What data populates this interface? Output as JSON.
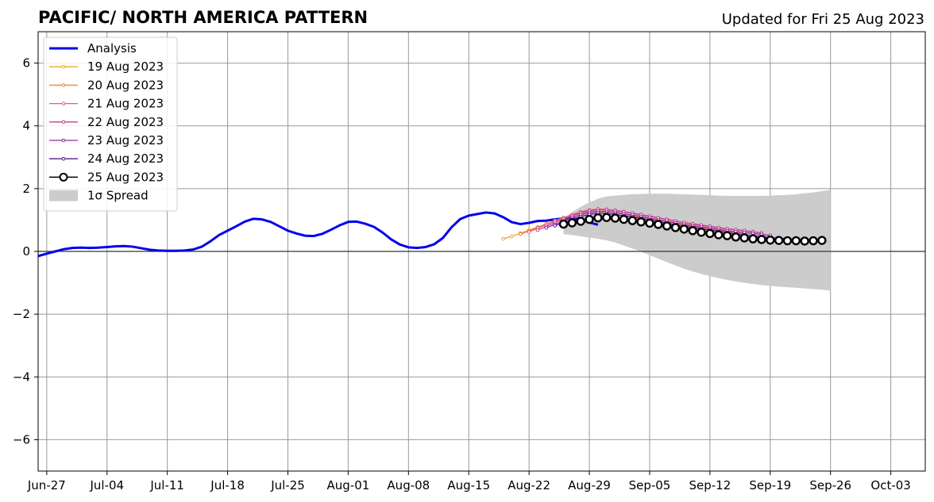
{
  "chart_data": {
    "type": "line",
    "title": "PACIFIC/ NORTH AMERICA PATTERN",
    "subtitle": "Updated for Fri 25 Aug 2023",
    "xlabel": "",
    "ylabel": "",
    "ylim": [
      -7,
      7
    ],
    "xlim": [
      "2023-06-26",
      "2023-10-07"
    ],
    "yticks": [
      -6,
      -4,
      -2,
      0,
      2,
      4,
      6
    ],
    "ytick_labels": [
      "−6",
      "−4",
      "−2",
      "0",
      "2",
      "4",
      "6"
    ],
    "xticks": [
      "2023-06-27",
      "2023-07-04",
      "2023-07-11",
      "2023-07-18",
      "2023-07-25",
      "2023-08-01",
      "2023-08-08",
      "2023-08-15",
      "2023-08-22",
      "2023-08-29",
      "2023-09-05",
      "2023-09-12",
      "2023-09-19",
      "2023-09-26",
      "2023-10-03"
    ],
    "xtick_labels": [
      "Jun-27",
      "Jul-04",
      "Jul-11",
      "Jul-18",
      "Jul-25",
      "Aug-01",
      "Aug-08",
      "Aug-15",
      "Aug-22",
      "Aug-29",
      "Sep-05",
      "Sep-12",
      "Sep-19",
      "Sep-26",
      "Oct-03"
    ],
    "grid": true,
    "legend_position": "top-left",
    "zero_line": true,
    "analysis": {
      "name": "Analysis",
      "color": "#0000ee",
      "start": "2023-06-26",
      "values": [
        -0.15,
        -0.07,
        0.0,
        0.07,
        0.11,
        0.12,
        0.11,
        0.12,
        0.14,
        0.16,
        0.17,
        0.15,
        0.1,
        0.05,
        0.03,
        0.02,
        0.02,
        0.03,
        0.06,
        0.15,
        0.32,
        0.52,
        0.66,
        0.8,
        0.95,
        1.04,
        1.02,
        0.94,
        0.8,
        0.66,
        0.57,
        0.5,
        0.49,
        0.56,
        0.69,
        0.83,
        0.94,
        0.95,
        0.88,
        0.78,
        0.6,
        0.38,
        0.22,
        0.13,
        0.11,
        0.14,
        0.23,
        0.43,
        0.77,
        1.03,
        1.14,
        1.19,
        1.24,
        1.21,
        1.09,
        0.93,
        0.87,
        0.91,
        0.97,
        0.98,
        1.02,
        1.05,
        1.06,
        1.0,
        0.92,
        0.85
      ]
    },
    "series": [
      {
        "name": "19 Aug 2023",
        "color": "#f5a623",
        "start": "2023-08-19",
        "values": [
          0.4,
          0.48,
          0.58,
          0.68,
          0.78,
          0.88,
          0.98,
          1.08,
          1.16,
          1.22,
          1.26,
          1.25,
          1.21,
          1.17,
          1.12,
          1.07,
          1.02,
          0.97,
          0.92,
          0.87,
          0.82,
          0.77,
          0.72,
          0.67,
          0.62,
          0.58,
          0.54,
          0.51
        ]
      },
      {
        "name": "20 Aug 2023",
        "color": "#ee7d3a",
        "start": "2023-08-21",
        "values": [
          0.55,
          0.65,
          0.76,
          0.86,
          0.96,
          1.06,
          1.15,
          1.22,
          1.27,
          1.29,
          1.28,
          1.24,
          1.19,
          1.14,
          1.09,
          1.04,
          0.99,
          0.94,
          0.89,
          0.84,
          0.79,
          0.75,
          0.71,
          0.67,
          0.63,
          0.59,
          0.56
        ]
      },
      {
        "name": "21 Aug 2023",
        "color": "#e0607a",
        "start": "2023-08-22",
        "values": [
          0.62,
          0.74,
          0.86,
          0.97,
          1.07,
          1.17,
          1.26,
          1.32,
          1.35,
          1.34,
          1.31,
          1.27,
          1.22,
          1.17,
          1.12,
          1.07,
          1.02,
          0.97,
          0.92,
          0.87,
          0.83,
          0.79,
          0.75,
          0.72,
          0.69,
          0.66,
          0.63
        ]
      },
      {
        "name": "22 Aug 2023",
        "color": "#c33e8e",
        "start": "2023-08-23",
        "values": [
          0.68,
          0.8,
          0.92,
          1.03,
          1.13,
          1.23,
          1.3,
          1.34,
          1.33,
          1.3,
          1.26,
          1.22,
          1.17,
          1.12,
          1.07,
          1.02,
          0.97,
          0.92,
          0.88,
          0.84,
          0.8,
          0.76,
          0.72,
          0.69,
          0.66,
          0.62,
          0.59
        ]
      },
      {
        "name": "23 Aug 2023",
        "color": "#9a26a8",
        "start": "2023-08-24",
        "values": [
          0.75,
          0.86,
          0.97,
          1.08,
          1.17,
          1.24,
          1.28,
          1.27,
          1.24,
          1.2,
          1.16,
          1.11,
          1.06,
          1.01,
          0.96,
          0.91,
          0.86,
          0.82,
          0.78,
          0.74,
          0.7,
          0.66,
          0.63,
          0.6,
          0.57,
          0.54,
          0.51
        ]
      },
      {
        "name": "24 Aug 2023",
        "color": "#5a10a0",
        "start": "2023-08-25",
        "values": [
          0.82,
          0.92,
          1.02,
          1.11,
          1.18,
          1.22,
          1.21,
          1.18,
          1.14,
          1.1,
          1.05,
          1.0,
          0.95,
          0.9,
          0.85,
          0.8,
          0.76,
          0.72,
          0.68,
          0.64,
          0.6,
          0.56,
          0.53,
          0.5,
          0.47,
          0.44,
          0.42,
          0.4
        ]
      },
      {
        "name": "25 Aug 2023",
        "color": "#000000",
        "marker": "open-circle",
        "start": "2023-08-26",
        "values": [
          0.87,
          0.91,
          0.96,
          1.02,
          1.07,
          1.08,
          1.06,
          1.02,
          0.98,
          0.94,
          0.9,
          0.86,
          0.81,
          0.76,
          0.71,
          0.66,
          0.61,
          0.57,
          0.53,
          0.5,
          0.46,
          0.43,
          0.4,
          0.38,
          0.36,
          0.35,
          0.34,
          0.34,
          0.33,
          0.34,
          0.35
        ]
      }
    ],
    "spread": {
      "name": "1σ Spread",
      "color": "#cccccc",
      "start": "2023-08-26",
      "upper": [
        1.05,
        1.25,
        1.42,
        1.56,
        1.68,
        1.75,
        1.78,
        1.8,
        1.82,
        1.83,
        1.84,
        1.84,
        1.84,
        1.83,
        1.82,
        1.81,
        1.8,
        1.79,
        1.78,
        1.77,
        1.77,
        1.77,
        1.77,
        1.77,
        1.78,
        1.79,
        1.8,
        1.82,
        1.85,
        1.88,
        1.92,
        1.96
      ],
      "lower": [
        0.55,
        0.52,
        0.48,
        0.44,
        0.4,
        0.35,
        0.28,
        0.19,
        0.09,
        -0.01,
        -0.12,
        -0.23,
        -0.34,
        -0.45,
        -0.55,
        -0.64,
        -0.72,
        -0.79,
        -0.85,
        -0.91,
        -0.96,
        -1.0,
        -1.04,
        -1.07,
        -1.1,
        -1.12,
        -1.14,
        -1.16,
        -1.18,
        -1.2,
        -1.22,
        -1.25
      ]
    },
    "legend": [
      "Analysis",
      "19 Aug 2023",
      "20 Aug 2023",
      "21 Aug 2023",
      "22 Aug 2023",
      "23 Aug 2023",
      "24 Aug 2023",
      "25 Aug 2023",
      "1σ Spread"
    ]
  }
}
